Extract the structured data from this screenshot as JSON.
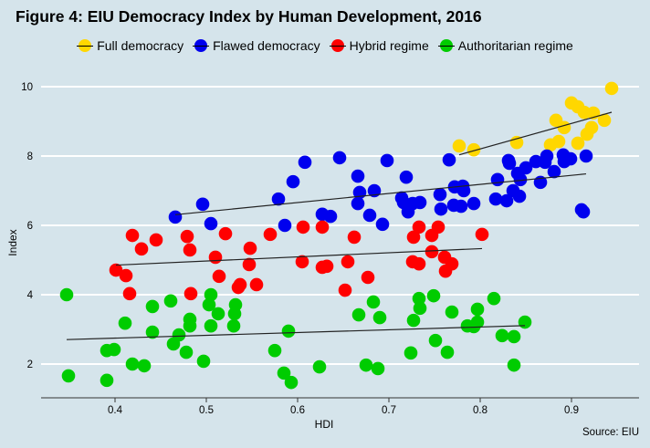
{
  "chart_data": {
    "type": "scatter",
    "title": "Figure 4: EIU Democracy Index by Human Development, 2016",
    "xlabel": "HDI",
    "ylabel": "Index",
    "source": "Source: EIU",
    "xlim": [
      0.34,
      0.97
    ],
    "ylim": [
      1,
      10.3
    ],
    "xticks": [
      "0.4",
      "0.5",
      "0.6",
      "0.7",
      "0.8",
      "0.9"
    ],
    "yticks": [
      "2",
      "4",
      "6",
      "8",
      "10"
    ],
    "grid": "horizontal",
    "legend_position": "top",
    "trendlines": "linear fit per series",
    "series": [
      {
        "name": "Full democracy",
        "color": "#ffd700",
        "points": [
          [
            0.944,
            9.95
          ],
          [
            0.9,
            9.53
          ],
          [
            0.907,
            9.42
          ],
          [
            0.914,
            9.26
          ],
          [
            0.924,
            9.24
          ],
          [
            0.936,
            9.03
          ],
          [
            0.922,
            8.82
          ],
          [
            0.917,
            8.63
          ],
          [
            0.907,
            8.37
          ],
          [
            0.883,
            9.03
          ],
          [
            0.892,
            8.82
          ],
          [
            0.886,
            8.42
          ],
          [
            0.877,
            8.32
          ],
          [
            0.84,
            8.39
          ],
          [
            0.777,
            8.29
          ],
          [
            0.793,
            8.18
          ]
        ]
      },
      {
        "name": "Flawed democracy",
        "color": "#0000ee",
        "points": [
          [
            0.466,
            6.24
          ],
          [
            0.496,
            6.61
          ],
          [
            0.505,
            6.05
          ],
          [
            0.579,
            6.76
          ],
          [
            0.595,
            7.26
          ],
          [
            0.608,
            7.82
          ],
          [
            0.646,
            7.95
          ],
          [
            0.586,
            6.0
          ],
          [
            0.627,
            6.32
          ],
          [
            0.636,
            6.26
          ],
          [
            0.698,
            7.87
          ],
          [
            0.766,
            7.89
          ],
          [
            0.666,
            7.42
          ],
          [
            0.668,
            6.95
          ],
          [
            0.684,
            7.0
          ],
          [
            0.666,
            6.63
          ],
          [
            0.679,
            6.29
          ],
          [
            0.693,
            6.03
          ],
          [
            0.719,
            7.39
          ],
          [
            0.714,
            6.79
          ],
          [
            0.716,
            6.66
          ],
          [
            0.721,
            6.39
          ],
          [
            0.726,
            6.63
          ],
          [
            0.734,
            6.66
          ],
          [
            0.756,
            6.89
          ],
          [
            0.757,
            6.47
          ],
          [
            0.772,
            7.11
          ],
          [
            0.781,
            7.13
          ],
          [
            0.782,
            7.0
          ],
          [
            0.771,
            6.58
          ],
          [
            0.779,
            6.55
          ],
          [
            0.793,
            6.63
          ],
          [
            0.817,
            6.76
          ],
          [
            0.829,
            6.71
          ],
          [
            0.836,
            7.0
          ],
          [
            0.843,
            6.84
          ],
          [
            0.819,
            7.32
          ],
          [
            0.831,
            7.87
          ],
          [
            0.832,
            7.79
          ],
          [
            0.841,
            7.5
          ],
          [
            0.844,
            7.32
          ],
          [
            0.85,
            7.66
          ],
          [
            0.861,
            7.84
          ],
          [
            0.871,
            7.82
          ],
          [
            0.873,
            8.0
          ],
          [
            0.866,
            7.24
          ],
          [
            0.881,
            7.55
          ],
          [
            0.891,
            8.03
          ],
          [
            0.892,
            7.84
          ],
          [
            0.899,
            7.92
          ],
          [
            0.916,
            8.0
          ],
          [
            0.911,
            6.45
          ],
          [
            0.913,
            6.39
          ]
        ]
      },
      {
        "name": "Hybrid regime",
        "color": "#ff0000",
        "points": [
          [
            0.401,
            4.71
          ],
          [
            0.412,
            4.55
          ],
          [
            0.416,
            4.03
          ],
          [
            0.419,
            5.71
          ],
          [
            0.429,
            5.32
          ],
          [
            0.445,
            5.58
          ],
          [
            0.479,
            5.68
          ],
          [
            0.482,
            5.29
          ],
          [
            0.483,
            4.03
          ],
          [
            0.51,
            5.08
          ],
          [
            0.514,
            4.53
          ],
          [
            0.521,
            5.76
          ],
          [
            0.537,
            4.29
          ],
          [
            0.535,
            4.21
          ],
          [
            0.548,
            5.34
          ],
          [
            0.547,
            4.87
          ],
          [
            0.555,
            4.29
          ],
          [
            0.57,
            5.74
          ],
          [
            0.606,
            5.95
          ],
          [
            0.627,
            5.95
          ],
          [
            0.605,
            4.95
          ],
          [
            0.627,
            4.79
          ],
          [
            0.632,
            4.82
          ],
          [
            0.652,
            4.13
          ],
          [
            0.662,
            5.66
          ],
          [
            0.655,
            4.95
          ],
          [
            0.677,
            4.5
          ],
          [
            0.733,
            5.95
          ],
          [
            0.727,
            5.66
          ],
          [
            0.747,
            5.71
          ],
          [
            0.754,
            5.95
          ],
          [
            0.802,
            5.74
          ],
          [
            0.747,
            5.24
          ],
          [
            0.761,
            5.08
          ],
          [
            0.769,
            4.89
          ],
          [
            0.762,
            4.68
          ],
          [
            0.726,
            4.95
          ],
          [
            0.733,
            4.89
          ]
        ]
      },
      {
        "name": "Authoritarian regime",
        "color": "#00cc00",
        "points": [
          [
            0.347,
            4.0
          ],
          [
            0.349,
            1.66
          ],
          [
            0.391,
            2.39
          ],
          [
            0.399,
            2.42
          ],
          [
            0.391,
            1.53
          ],
          [
            0.411,
            3.18
          ],
          [
            0.419,
            2.0
          ],
          [
            0.432,
            1.95
          ],
          [
            0.441,
            2.92
          ],
          [
            0.441,
            3.66
          ],
          [
            0.461,
            3.82
          ],
          [
            0.464,
            2.58
          ],
          [
            0.47,
            2.84
          ],
          [
            0.478,
            2.34
          ],
          [
            0.482,
            3.1
          ],
          [
            0.482,
            3.29
          ],
          [
            0.497,
            2.08
          ],
          [
            0.503,
            3.71
          ],
          [
            0.505,
            4.0
          ],
          [
            0.505,
            3.1
          ],
          [
            0.513,
            3.45
          ],
          [
            0.53,
            3.1
          ],
          [
            0.531,
            3.45
          ],
          [
            0.532,
            3.71
          ],
          [
            0.575,
            2.39
          ],
          [
            0.585,
            1.74
          ],
          [
            0.59,
            2.95
          ],
          [
            0.593,
            1.47
          ],
          [
            0.624,
            1.92
          ],
          [
            0.667,
            3.42
          ],
          [
            0.675,
            1.97
          ],
          [
            0.683,
            3.79
          ],
          [
            0.69,
            3.34
          ],
          [
            0.688,
            1.87
          ],
          [
            0.724,
            2.32
          ],
          [
            0.727,
            3.26
          ],
          [
            0.733,
            3.89
          ],
          [
            0.734,
            3.61
          ],
          [
            0.749,
            3.97
          ],
          [
            0.751,
            2.68
          ],
          [
            0.764,
            2.34
          ],
          [
            0.769,
            3.5
          ],
          [
            0.786,
            3.1
          ],
          [
            0.793,
            3.08
          ],
          [
            0.797,
            3.58
          ],
          [
            0.797,
            3.21
          ],
          [
            0.815,
            3.89
          ],
          [
            0.824,
            2.82
          ],
          [
            0.837,
            2.79
          ],
          [
            0.837,
            1.97
          ],
          [
            0.849,
            3.21
          ]
        ]
      }
    ]
  }
}
